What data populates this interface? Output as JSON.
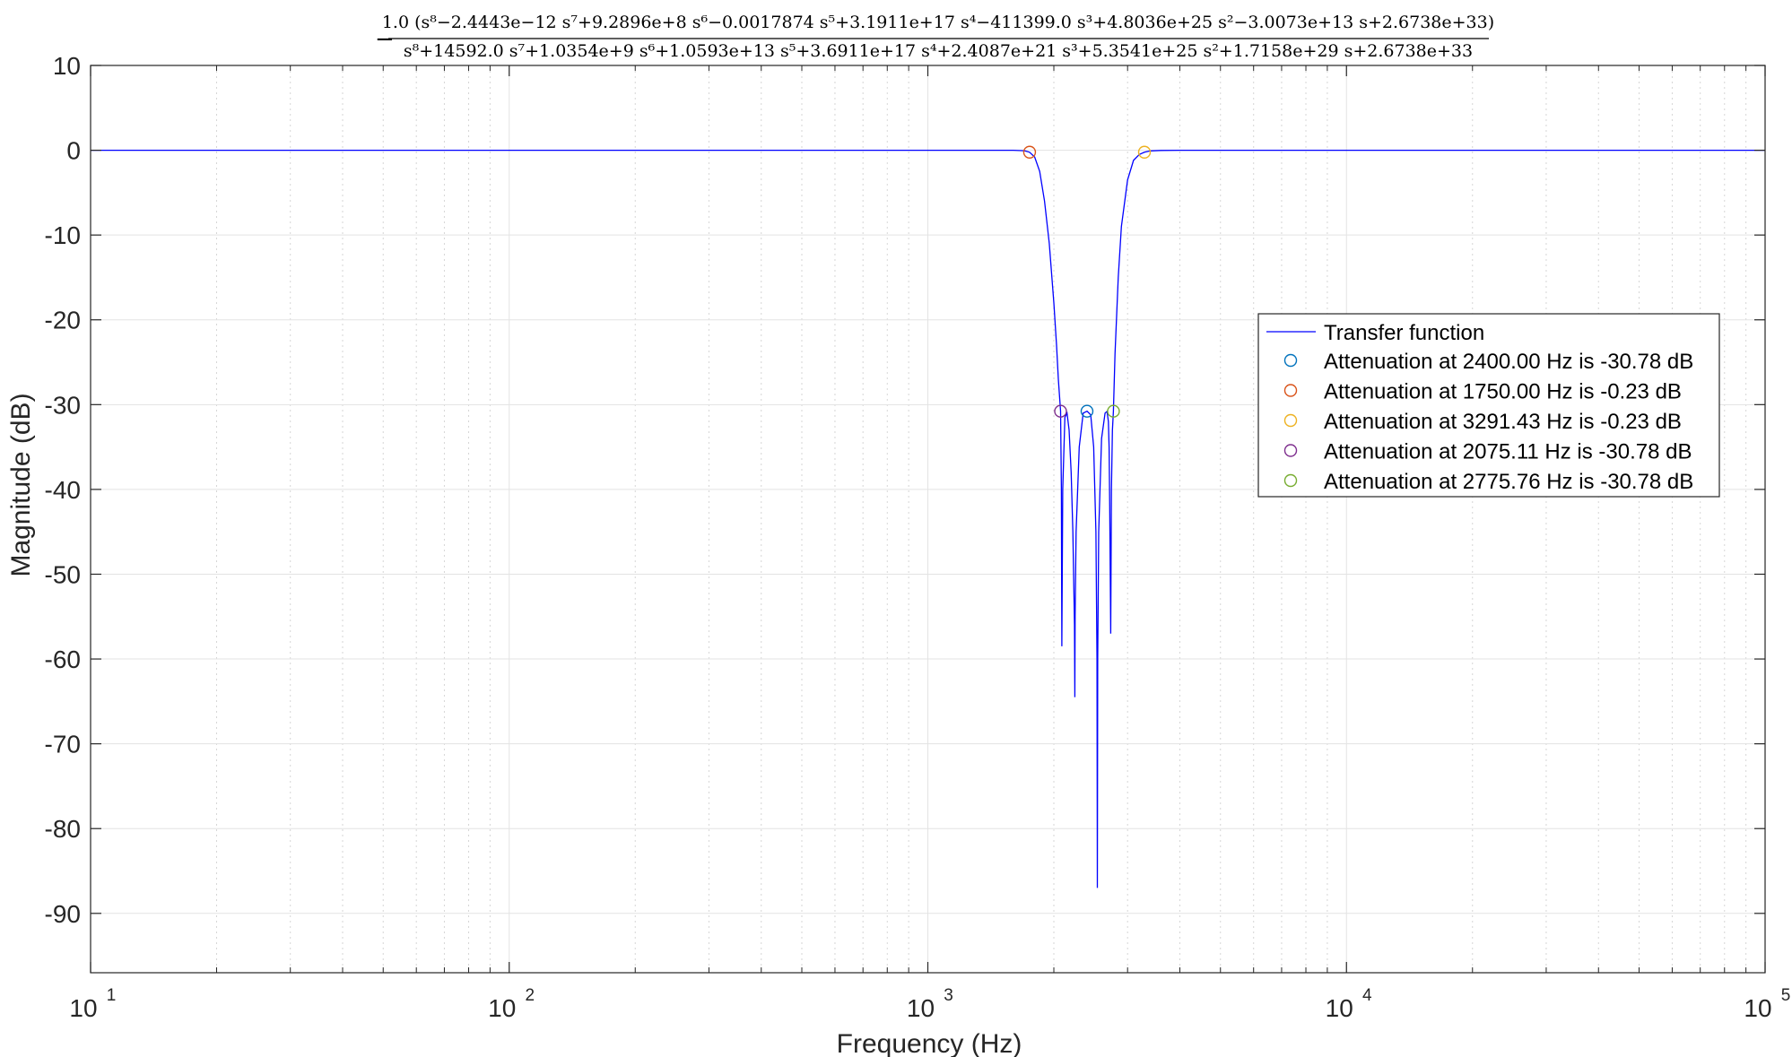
{
  "chart_data": {
    "type": "line",
    "title": {
      "sign": "−",
      "numerator": "1.0 (s⁸−2.4443e−12 s⁷+9.2896e+8 s⁶−0.0017874 s⁵+3.1911e+17 s⁴−411399.0 s³+4.8036e+25 s²−3.0073e+13 s+2.6738e+33)",
      "denominator": "s⁸+14592.0 s⁷+1.0354e+9 s⁶+1.0593e+13 s⁵+3.6911e+17 s⁴+2.4087e+21 s³+5.3541e+25 s²+1.7158e+29 s+2.6738e+33"
    },
    "xlabel": "Frequency (Hz)",
    "ylabel": "Magnitude (dB)",
    "x_scale": "log",
    "xlim": [
      10,
      100000
    ],
    "ylim": [
      -97,
      10
    ],
    "grid": true,
    "legend_placement": "right",
    "x_ticks": [
      {
        "value": 10,
        "base": "10",
        "exp": "1"
      },
      {
        "value": 100,
        "base": "10",
        "exp": "2"
      },
      {
        "value": 1000,
        "base": "10",
        "exp": "3"
      },
      {
        "value": 10000,
        "base": "10",
        "exp": "4"
      },
      {
        "value": 100000,
        "base": "10",
        "exp": "5"
      }
    ],
    "y_ticks": [
      10,
      0,
      -10,
      -20,
      -30,
      -40,
      -50,
      -60,
      -70,
      -80,
      -90
    ],
    "y_tick_labels": [
      "10",
      "0",
      "-10",
      "-20",
      "-30",
      "-40",
      "-50",
      "-60",
      "-70",
      "-80",
      "-90"
    ],
    "series": [
      {
        "name": "Transfer function",
        "color": "#0000ff",
        "x": [
          10,
          100,
          500,
          1000,
          1400,
          1600,
          1700,
          1750,
          1800,
          1850,
          1900,
          1950,
          2000,
          2030,
          2050,
          2075.11,
          2085,
          2088,
          2090,
          2100,
          2125,
          2150,
          2175,
          2200,
          2220,
          2240,
          2245,
          2248,
          2260,
          2300,
          2350,
          2400,
          2450,
          2490,
          2520,
          2535,
          2540,
          2545,
          2560,
          2600,
          2650,
          2680,
          2700,
          2710,
          2720,
          2735,
          2745,
          2760,
          2775.76,
          2800,
          2850,
          2900,
          3000,
          3100,
          3200,
          3291.43,
          3400,
          3600,
          4000,
          5000,
          10000,
          100000
        ],
        "y": [
          0,
          0,
          0,
          0,
          0,
          0,
          -0.05,
          -0.23,
          -0.8,
          -2.5,
          -6,
          -11,
          -18,
          -23,
          -27,
          -30.78,
          -40,
          -52,
          -58.5,
          -40,
          -31.5,
          -31,
          -33,
          -38,
          -45,
          -56,
          -64.5,
          -55,
          -45,
          -35,
          -31,
          -30.78,
          -31.2,
          -35,
          -45,
          -60,
          -87,
          -60,
          -45,
          -34,
          -31,
          -30.8,
          -32,
          -35,
          -42,
          -57,
          -40,
          -33,
          -30.78,
          -24,
          -15,
          -9,
          -3.5,
          -1.2,
          -0.5,
          -0.23,
          -0.08,
          -0.02,
          0,
          0,
          0,
          0
        ]
      }
    ],
    "markers": [
      {
        "label": "Attenuation at 2400.00 Hz is -30.78 dB",
        "x": 2400.0,
        "y": -30.78,
        "color": "#0072bd"
      },
      {
        "label": "Attenuation at 1750.00 Hz is -0.23 dB",
        "x": 1750.0,
        "y": -0.23,
        "color": "#d95319"
      },
      {
        "label": "Attenuation at 3291.43 Hz is -0.23 dB",
        "x": 3291.43,
        "y": -0.23,
        "color": "#edb120"
      },
      {
        "label": "Attenuation at 2075.11 Hz is -30.78 dB",
        "x": 2075.11,
        "y": -30.78,
        "color": "#7e2f8e"
      },
      {
        "label": "Attenuation at 2775.76 Hz is -30.78 dB",
        "x": 2775.76,
        "y": -30.78,
        "color": "#77ac30"
      }
    ]
  }
}
